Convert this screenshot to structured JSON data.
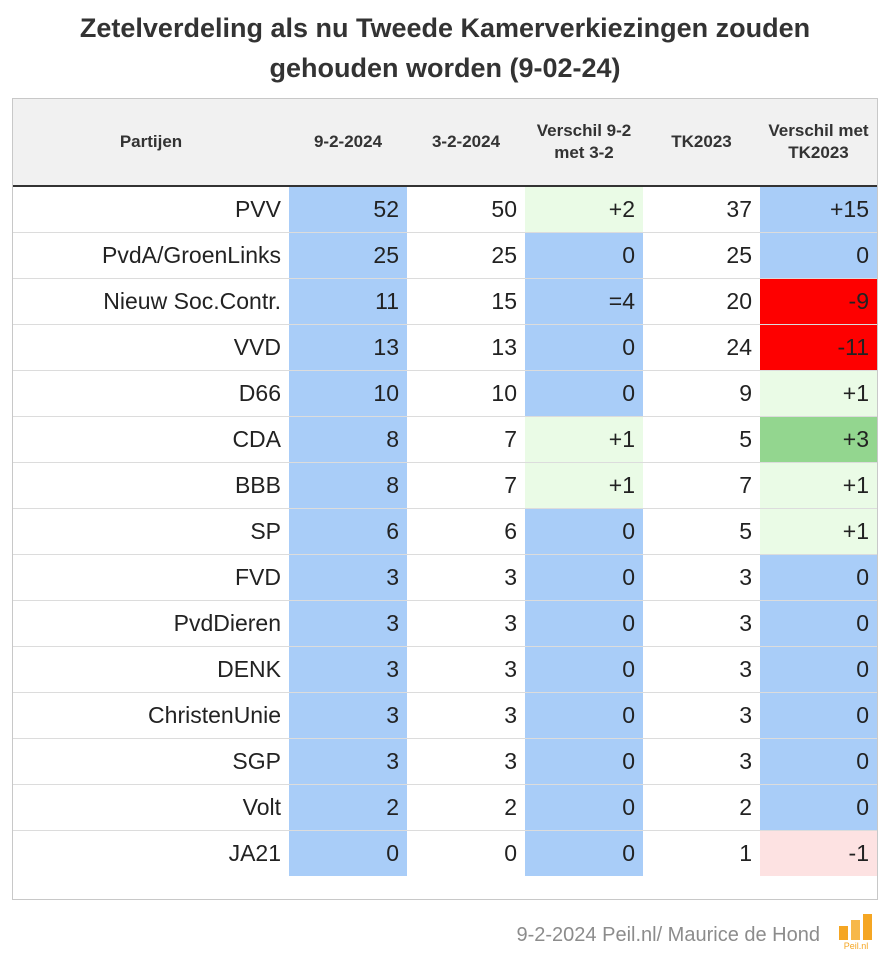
{
  "header": {
    "title_line1": "Zetelverdeling als nu Tweede Kamerverkiezingen zouden",
    "title_line2": "gehouden worden (9-02-24)"
  },
  "colors": {
    "blue": "#a9cdf8",
    "light_green": "#eafbe6",
    "green": "#93d68f",
    "red": "#fe0000",
    "light_red": "#fde2e2",
    "white": "#ffffff",
    "logo_orange": "#f5a623"
  },
  "chart_data": {
    "type": "table",
    "title": "Zetelverdeling als nu Tweede Kamerverkiezingen zouden gehouden worden (9-02-24)",
    "columns": [
      "Partijen",
      "9-2-2024",
      "3-2-2024",
      "Verschil 9-2 met 3-2",
      "TK2023",
      "Verschil met TK2023"
    ],
    "rows": [
      {
        "party": "PVV",
        "v1": "52",
        "v2": "50",
        "d1": "+2",
        "tk": "37",
        "d2": "+15",
        "bg": [
          "blue",
          "white",
          "light_green",
          "white",
          "blue"
        ]
      },
      {
        "party": "PvdA/GroenLinks",
        "v1": "25",
        "v2": "25",
        "d1": "0",
        "tk": "25",
        "d2": "0",
        "bg": [
          "blue",
          "white",
          "blue",
          "white",
          "blue"
        ]
      },
      {
        "party": "Nieuw Soc.Contr.",
        "v1": "11",
        "v2": "15",
        "d1": "=4",
        "tk": "20",
        "d2": "-9",
        "bg": [
          "blue",
          "white",
          "blue",
          "white",
          "red"
        ]
      },
      {
        "party": "VVD",
        "v1": "13",
        "v2": "13",
        "d1": "0",
        "tk": "24",
        "d2": "-11",
        "bg": [
          "blue",
          "white",
          "blue",
          "white",
          "red"
        ]
      },
      {
        "party": "D66",
        "v1": "10",
        "v2": "10",
        "d1": "0",
        "tk": "9",
        "d2": "+1",
        "bg": [
          "blue",
          "white",
          "blue",
          "white",
          "light_green"
        ]
      },
      {
        "party": "CDA",
        "v1": "8",
        "v2": "7",
        "d1": "+1",
        "tk": "5",
        "d2": "+3",
        "bg": [
          "blue",
          "white",
          "light_green",
          "white",
          "green"
        ]
      },
      {
        "party": "BBB",
        "v1": "8",
        "v2": "7",
        "d1": "+1",
        "tk": "7",
        "d2": "+1",
        "bg": [
          "blue",
          "white",
          "light_green",
          "white",
          "light_green"
        ]
      },
      {
        "party": "SP",
        "v1": "6",
        "v2": "6",
        "d1": "0",
        "tk": "5",
        "d2": "+1",
        "bg": [
          "blue",
          "white",
          "blue",
          "white",
          "light_green"
        ]
      },
      {
        "party": "FVD",
        "v1": "3",
        "v2": "3",
        "d1": "0",
        "tk": "3",
        "d2": "0",
        "bg": [
          "blue",
          "white",
          "blue",
          "white",
          "blue"
        ]
      },
      {
        "party": "PvdDieren",
        "v1": "3",
        "v2": "3",
        "d1": "0",
        "tk": "3",
        "d2": "0",
        "bg": [
          "blue",
          "white",
          "blue",
          "white",
          "blue"
        ]
      },
      {
        "party": "DENK",
        "v1": "3",
        "v2": "3",
        "d1": "0",
        "tk": "3",
        "d2": "0",
        "bg": [
          "blue",
          "white",
          "blue",
          "white",
          "blue"
        ]
      },
      {
        "party": "ChristenUnie",
        "v1": "3",
        "v2": "3",
        "d1": "0",
        "tk": "3",
        "d2": "0",
        "bg": [
          "blue",
          "white",
          "blue",
          "white",
          "blue"
        ]
      },
      {
        "party": "SGP",
        "v1": "3",
        "v2": "3",
        "d1": "0",
        "tk": "3",
        "d2": "0",
        "bg": [
          "blue",
          "white",
          "blue",
          "white",
          "blue"
        ]
      },
      {
        "party": "Volt",
        "v1": "2",
        "v2": "2",
        "d1": "0",
        "tk": "2",
        "d2": "0",
        "bg": [
          "blue",
          "white",
          "blue",
          "white",
          "blue"
        ]
      },
      {
        "party": "JA21",
        "v1": "0",
        "v2": "0",
        "d1": "0",
        "tk": "1",
        "d2": "-1",
        "bg": [
          "blue",
          "white",
          "blue",
          "white",
          "light_red"
        ]
      }
    ]
  },
  "footer": {
    "source": "9-2-2024 Peil.nl/ Maurice de Hond",
    "logo_text": "Peil.nl"
  }
}
